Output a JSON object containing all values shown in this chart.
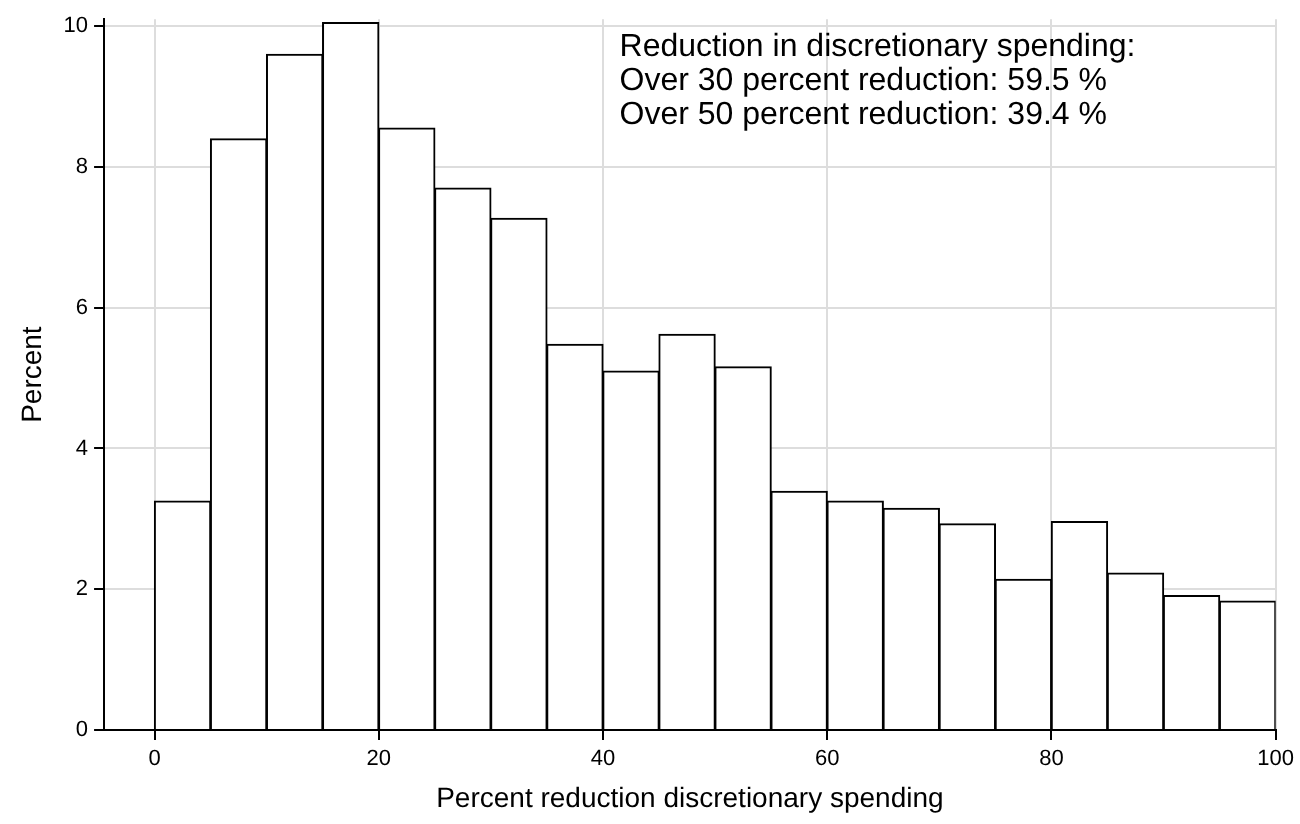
{
  "chart_data": {
    "type": "histogram",
    "xlabel": "Percent reduction discretionary spending",
    "ylabel": "Percent",
    "bins": [
      0,
      5,
      10,
      15,
      20,
      25,
      30,
      35,
      40,
      45,
      50,
      55,
      60,
      65,
      70,
      75,
      80,
      85,
      90,
      95,
      100
    ],
    "values": [
      3.25,
      8.4,
      9.6,
      10.05,
      8.55,
      7.7,
      7.27,
      5.48,
      5.1,
      5.62,
      5.16,
      3.39,
      3.25,
      3.15,
      2.93,
      2.14,
      2.96,
      2.23,
      1.91,
      1.83
    ],
    "color": "#ffffff",
    "xlim": [
      -4.5,
      100
    ],
    "xticks": [
      0,
      20,
      40,
      60,
      80,
      100
    ],
    "ylim": [
      0,
      10.1
    ],
    "yticks": [
      0,
      2,
      4,
      6,
      8,
      10
    ],
    "grid": true,
    "annotations": [
      "Reduction in discretionary spending:",
      "Over 30 percent reduction: 59.5 %",
      "Over 50 percent reduction: 39.4 %"
    ]
  }
}
